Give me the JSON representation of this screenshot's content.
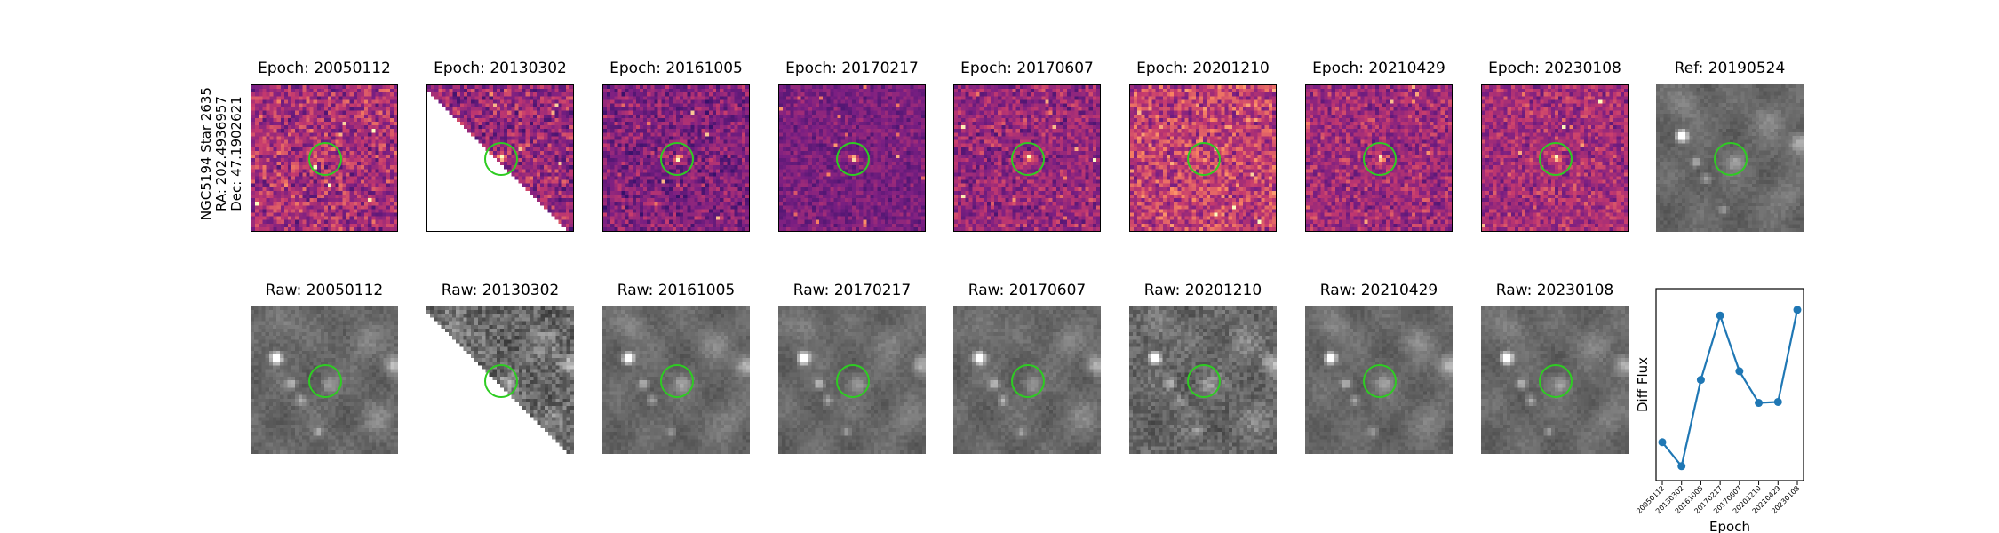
{
  "target": {
    "line1": "NGC5194 Star 2635",
    "line2": "RA: 202.4936957",
    "line3": "Dec: 47.1902621"
  },
  "row1_titles": [
    "Epoch: 20050112",
    "Epoch: 20130302",
    "Epoch: 20161005",
    "Epoch: 20170217",
    "Epoch: 20170607",
    "Epoch: 20201210",
    "Epoch: 20210429",
    "Epoch: 20230108",
    "Ref: 20190524"
  ],
  "row2_titles": [
    "Raw: 20050112",
    "Raw: 20130302",
    "Raw: 20161005",
    "Raw: 20170217",
    "Raw: 20170607",
    "Raw: 20201210",
    "Raw: 20210429",
    "Raw: 20230108"
  ],
  "colors": {
    "marker": "#2ecc22",
    "series": "#1f77b4",
    "diff_colormap": "magma",
    "raw_colormap": "gray"
  },
  "chart_data": {
    "type": "line",
    "x": [
      "20050112",
      "20130302",
      "20161005",
      "20170217",
      "20170607",
      "20201210",
      "20210429",
      "20230108"
    ],
    "series": [
      {
        "values": [
          -0.6,
          -0.85,
          0.05,
          0.72,
          0.14,
          -0.19,
          -0.18,
          0.78
        ]
      }
    ],
    "xlabel": "Epoch",
    "ylabel": "Diff Flux",
    "ylim": [
      -1.0,
      1.0
    ],
    "grid": false,
    "yticks_visible": false
  }
}
